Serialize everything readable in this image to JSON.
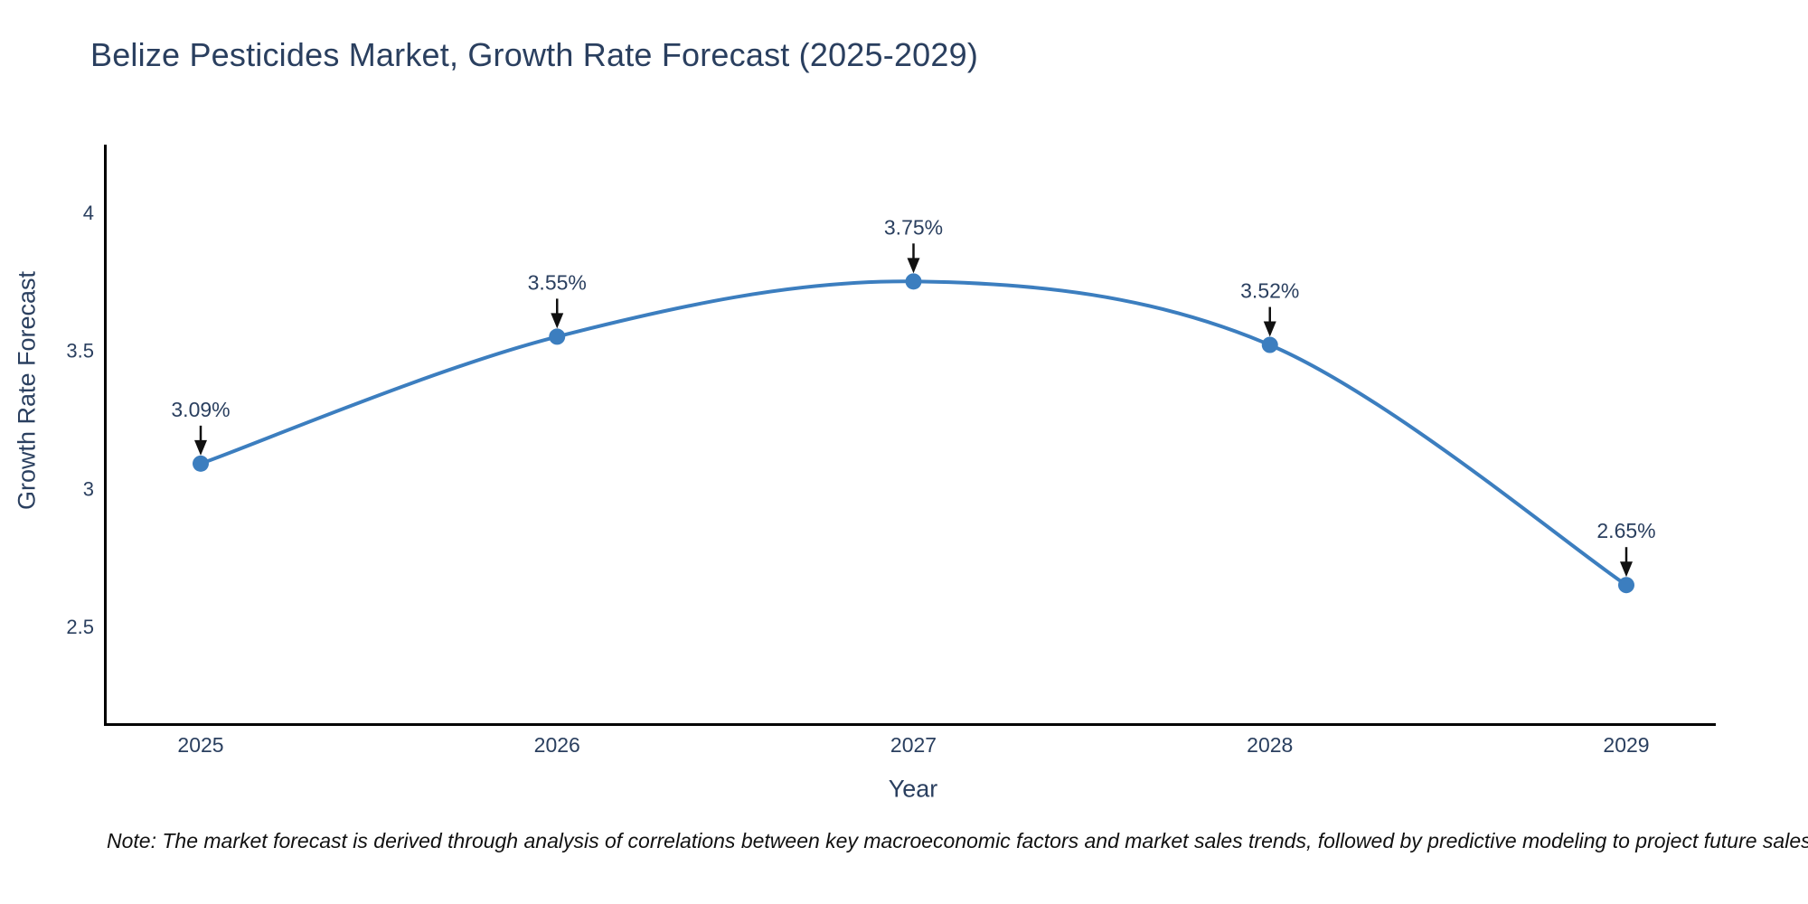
{
  "header": {
    "title": "Belize Pesticides Market, Growth Rate Forecast (2025-2029)"
  },
  "footer": {
    "note": "Note: The market forecast is derived through analysis of correlations between key macroeconomic factors and market sales trends, followed by predictive modeling to project future sales"
  },
  "chart_data": {
    "type": "line",
    "title": "Belize Pesticides Market, Growth Rate Forecast (2025-2029)",
    "xlabel": "Year",
    "ylabel": "Growth Rate Forecast",
    "x": [
      2025,
      2026,
      2027,
      2028,
      2029
    ],
    "x_labels": [
      "2025",
      "2026",
      "2027",
      "2028",
      "2029"
    ],
    "y": [
      3.09,
      3.55,
      3.75,
      3.52,
      2.65
    ],
    "point_labels": [
      "3.09%",
      "3.55%",
      "3.75%",
      "3.52%",
      "2.65%"
    ],
    "yticks": [
      {
        "label": "4",
        "value": 4
      },
      {
        "label": "3.5",
        "value": 3.5
      },
      {
        "label": "3",
        "value": 3
      },
      {
        "label": "2.5",
        "value": 2.5
      }
    ],
    "ylim": [
      2.14,
      4.25
    ],
    "grid": false,
    "legend": "none",
    "line_shape": "spline",
    "colors": {
      "line": "#3c7ebf",
      "marker": "#3c7ebf",
      "annotation_arrow": "#111111",
      "text": "#2a3f5f",
      "axis_line": "#000000"
    }
  }
}
